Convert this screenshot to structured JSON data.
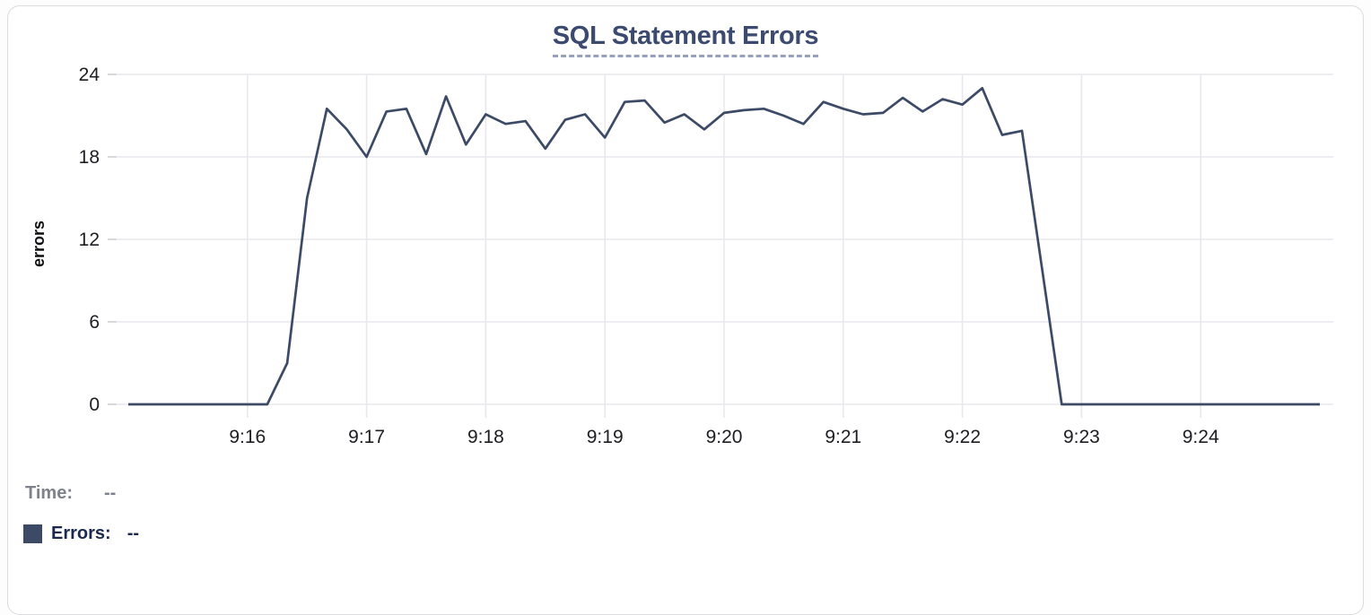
{
  "title": {
    "text": "SQL Statement Errors"
  },
  "tooltip": {
    "time_label": "Time:",
    "time_value": "--",
    "errors_label": "Errors:",
    "errors_value": "--"
  },
  "colors": {
    "line": "#3d4a66",
    "swatch": "#3d4a66",
    "grid": "#e9e9ed",
    "tick_mark": "#d8d8dd",
    "tick_text": "#1d1d22",
    "axis_title_text": "#0f0f12",
    "title_text": "#3b4a6e",
    "title_underline": "#98a1bb",
    "card_border": "#dbdbe0",
    "card_bg": "#ffffff"
  },
  "chart_data": {
    "type": "line",
    "title": "SQL Statement Errors",
    "xlabel": "",
    "ylabel": "errors",
    "ylim": [
      0,
      24
    ],
    "yticks": [
      0,
      6,
      12,
      18,
      24
    ],
    "x_tick_labels": [
      "9:16",
      "9:17",
      "9:18",
      "9:19",
      "9:20",
      "9:21",
      "9:22",
      "9:23",
      "9:24"
    ],
    "grid": true,
    "legend_position": "none",
    "sample_interval_seconds": 10,
    "x": [
      "9:15:00",
      "9:15:10",
      "9:15:20",
      "9:15:30",
      "9:15:40",
      "9:15:50",
      "9:16:00",
      "9:16:10",
      "9:16:20",
      "9:16:30",
      "9:16:40",
      "9:16:50",
      "9:17:00",
      "9:17:10",
      "9:17:20",
      "9:17:30",
      "9:17:40",
      "9:17:50",
      "9:18:00",
      "9:18:10",
      "9:18:20",
      "9:18:30",
      "9:18:40",
      "9:18:50",
      "9:19:00",
      "9:19:10",
      "9:19:20",
      "9:19:30",
      "9:19:40",
      "9:19:50",
      "9:20:00",
      "9:20:10",
      "9:20:20",
      "9:20:30",
      "9:20:40",
      "9:20:50",
      "9:21:00",
      "9:21:10",
      "9:21:20",
      "9:21:30",
      "9:21:40",
      "9:21:50",
      "9:22:00",
      "9:22:10",
      "9:22:20",
      "9:22:30",
      "9:22:40",
      "9:22:50",
      "9:23:00",
      "9:23:10",
      "9:23:20",
      "9:23:30",
      "9:23:40",
      "9:23:50",
      "9:24:00",
      "9:24:10",
      "9:24:20",
      "9:24:30",
      "9:24:40",
      "9:24:50",
      "9:25:00"
    ],
    "series": [
      {
        "name": "Errors",
        "color": "#3d4a66",
        "values": [
          0,
          0,
          0,
          0,
          0,
          0,
          0,
          0,
          3,
          15,
          21.5,
          20,
          18,
          21.3,
          21.5,
          18.2,
          22.4,
          18.9,
          21.1,
          20.4,
          20.6,
          18.6,
          20.7,
          21.1,
          19.4,
          22,
          22.1,
          20.5,
          21.1,
          20,
          21.2,
          21.4,
          21.5,
          21,
          20.4,
          22,
          21.5,
          21.1,
          21.2,
          22.3,
          21.3,
          22.2,
          21.8,
          23,
          19.6,
          19.9,
          10,
          0,
          0,
          0,
          0,
          0,
          0,
          0,
          0,
          0,
          0,
          0,
          0,
          0,
          0
        ]
      }
    ]
  }
}
